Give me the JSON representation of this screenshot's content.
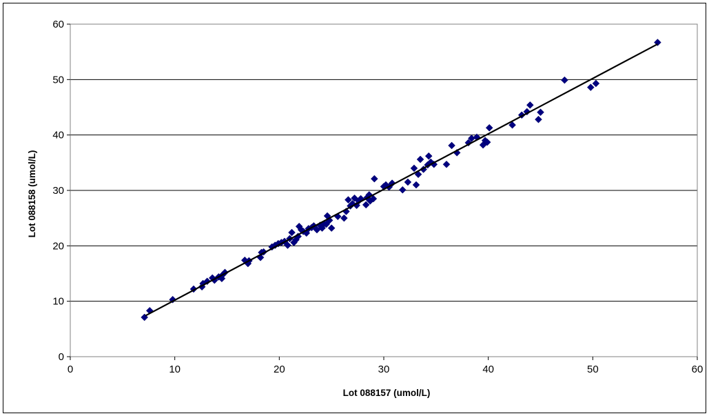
{
  "chart_data": {
    "type": "scatter",
    "title": "",
    "xlabel": "Lot 088157 (umol/L)",
    "ylabel": "Lot 088158 (umol/L)",
    "xlim": [
      0,
      60
    ],
    "ylim": [
      0,
      60
    ],
    "xticks": [
      0,
      10,
      20,
      30,
      40,
      50,
      60
    ],
    "yticks": [
      0,
      10,
      20,
      30,
      40,
      50,
      60
    ],
    "grid": "horizontal",
    "legend": "none",
    "marker_color": "#000080",
    "line_color": "#000000",
    "trendline": {
      "type": "linear",
      "x": [
        7.2,
        56.2
      ],
      "y": [
        7.4,
        56.4
      ]
    },
    "series": [
      {
        "points": [
          [
            7.1,
            7.1
          ],
          [
            7.6,
            8.3
          ],
          [
            9.8,
            10.3
          ],
          [
            11.8,
            12.2
          ],
          [
            12.6,
            12.6
          ],
          [
            12.7,
            13.2
          ],
          [
            13.1,
            13.6
          ],
          [
            13.6,
            14.2
          ],
          [
            13.8,
            13.8
          ],
          [
            14.2,
            14.4
          ],
          [
            14.5,
            14.1
          ],
          [
            14.6,
            14.8
          ],
          [
            14.8,
            15.2
          ],
          [
            16.7,
            17.4
          ],
          [
            17.0,
            16.8
          ],
          [
            17.1,
            17.3
          ],
          [
            18.2,
            17.9
          ],
          [
            18.3,
            18.8
          ],
          [
            18.5,
            18.9
          ],
          [
            19.3,
            19.8
          ],
          [
            19.6,
            20.1
          ],
          [
            19.9,
            20.4
          ],
          [
            20.2,
            20.6
          ],
          [
            20.5,
            20.8
          ],
          [
            20.8,
            20.1
          ],
          [
            21.0,
            21.3
          ],
          [
            21.2,
            22.4
          ],
          [
            21.4,
            20.6
          ],
          [
            21.6,
            21.1
          ],
          [
            21.8,
            21.7
          ],
          [
            21.9,
            23.5
          ],
          [
            22.1,
            22.9
          ],
          [
            22.3,
            22.6
          ],
          [
            22.6,
            22.3
          ],
          [
            22.8,
            23.1
          ],
          [
            23.1,
            23.3
          ],
          [
            23.3,
            23.6
          ],
          [
            23.6,
            22.9
          ],
          [
            23.9,
            23.7
          ],
          [
            24.1,
            23.2
          ],
          [
            24.3,
            24.0
          ],
          [
            24.5,
            23.9
          ],
          [
            24.6,
            25.4
          ],
          [
            24.8,
            24.6
          ],
          [
            25.0,
            23.2
          ],
          [
            25.6,
            25.3
          ],
          [
            26.2,
            25.0
          ],
          [
            26.4,
            26.2
          ],
          [
            26.6,
            28.3
          ],
          [
            26.8,
            27.2
          ],
          [
            27.0,
            27.6
          ],
          [
            27.2,
            28.6
          ],
          [
            27.4,
            27.3
          ],
          [
            27.6,
            28.1
          ],
          [
            27.8,
            28.5
          ],
          [
            28.3,
            27.4
          ],
          [
            28.4,
            28.7
          ],
          [
            28.6,
            29.2
          ],
          [
            28.7,
            28.1
          ],
          [
            29.0,
            28.5
          ],
          [
            29.1,
            32.1
          ],
          [
            30.0,
            30.7
          ],
          [
            30.2,
            31.0
          ],
          [
            30.5,
            30.6
          ],
          [
            30.8,
            31.3
          ],
          [
            31.8,
            30.1
          ],
          [
            32.3,
            31.5
          ],
          [
            32.9,
            34.0
          ],
          [
            33.1,
            31.0
          ],
          [
            33.3,
            32.9
          ],
          [
            33.5,
            35.6
          ],
          [
            33.8,
            33.8
          ],
          [
            34.2,
            34.6
          ],
          [
            34.3,
            36.2
          ],
          [
            34.5,
            35.1
          ],
          [
            34.8,
            34.7
          ],
          [
            36.0,
            34.7
          ],
          [
            36.5,
            38.1
          ],
          [
            37.0,
            36.8
          ],
          [
            38.1,
            38.6
          ],
          [
            38.4,
            39.4
          ],
          [
            38.9,
            39.6
          ],
          [
            39.5,
            38.2
          ],
          [
            39.7,
            39.0
          ],
          [
            39.9,
            38.7
          ],
          [
            40.1,
            41.3
          ],
          [
            42.3,
            41.8
          ],
          [
            43.2,
            43.6
          ],
          [
            43.7,
            44.2
          ],
          [
            44.0,
            45.4
          ],
          [
            44.8,
            42.8
          ],
          [
            45.0,
            44.1
          ],
          [
            47.3,
            49.9
          ],
          [
            49.8,
            48.6
          ],
          [
            50.3,
            49.3
          ],
          [
            56.2,
            56.7
          ]
        ]
      }
    ]
  }
}
